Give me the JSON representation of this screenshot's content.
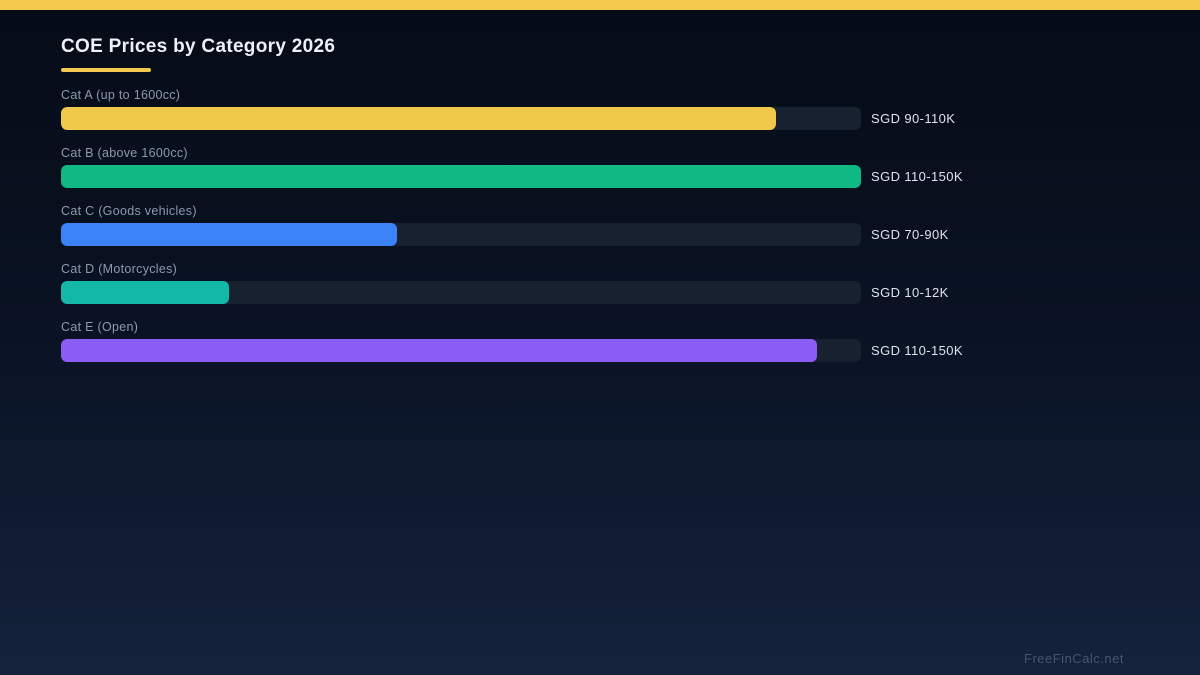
{
  "page": {
    "title": "COE Prices by Category 2026",
    "watermark": "FreeFinCalc.net"
  },
  "colors": {
    "accent": "#f2c94c",
    "background_top": "#050b16",
    "background_bottom": "#14223c",
    "track": "#18212f",
    "title_text": "#edf1f7",
    "category_label_text": "#8e99ad",
    "value_text": "#dce3ee",
    "watermark_text": "#47566f"
  },
  "chart_data": {
    "type": "bar",
    "orientation": "horizontal",
    "title": "COE Prices by Category 2026",
    "xlabel": "",
    "ylabel": "",
    "grid": false,
    "legend": false,
    "categories": [
      "Cat A (up to 1600cc)",
      "Cat B (above 1600cc)",
      "Cat C (Goods vehicles)",
      "Cat D (Motorcycles)",
      "Cat E (Open)"
    ],
    "values": [
      "SGD 90-110K",
      "SGD 110-150K",
      "SGD 70-90K",
      "SGD 10-12K",
      "SGD 110-150K"
    ],
    "value_ranges_sgd_thousands": [
      [
        90,
        110
      ],
      [
        110,
        150
      ],
      [
        70,
        90
      ],
      [
        10,
        12
      ],
      [
        110,
        150
      ]
    ],
    "fill_percent": [
      89.4,
      100,
      42,
      21,
      94.5
    ],
    "bar_colors": [
      "#f0c84a",
      "#10b981",
      "#3b82f6",
      "#14b8a6",
      "#8b5cf6"
    ]
  }
}
